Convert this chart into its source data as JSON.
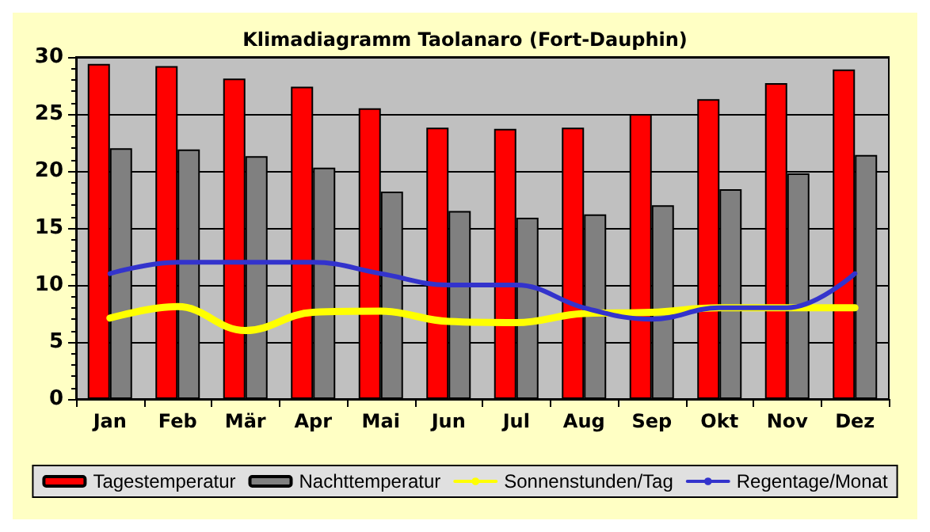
{
  "chart_data": {
    "type": "bar",
    "title": "Klimadiagramm Taolanaro (Fort-Dauphin)",
    "categories": [
      "Jan",
      "Feb",
      "Mär",
      "Apr",
      "Mai",
      "Jun",
      "Jul",
      "Aug",
      "Sep",
      "Okt",
      "Nov",
      "Dez"
    ],
    "series": [
      {
        "name": "Tagestemperatur",
        "color": "#ff0000",
        "values": [
          29.4,
          29.2,
          28.1,
          27.4,
          25.5,
          23.8,
          23.7,
          23.8,
          25,
          26.3,
          27.7,
          28.9
        ]
      },
      {
        "name": "Nachttemperatur",
        "color": "#808080",
        "values": [
          22,
          21.9,
          21.3,
          20.3,
          18.2,
          16.5,
          15.9,
          16.2,
          17,
          18.4,
          19.8,
          21.4
        ]
      },
      {
        "name": "Sonnenstunden/Tag",
        "type": "line",
        "color": "#ffff00",
        "values": [
          7.1,
          8.1,
          6,
          7.6,
          7.7,
          6.8,
          6.7,
          7.5,
          7.6,
          8,
          8,
          8
        ]
      },
      {
        "name": "Regentage/Monat",
        "type": "line",
        "color": "#3333cc",
        "values": [
          11,
          12,
          12,
          12,
          11,
          10,
          10,
          8,
          7,
          8,
          8,
          11
        ]
      }
    ],
    "ylim": [
      0,
      30
    ],
    "yticks": [
      0,
      5,
      10,
      15,
      20,
      25,
      30
    ],
    "grid": "y",
    "legend": "bottom",
    "marker": "none",
    "line_style": "solid"
  }
}
